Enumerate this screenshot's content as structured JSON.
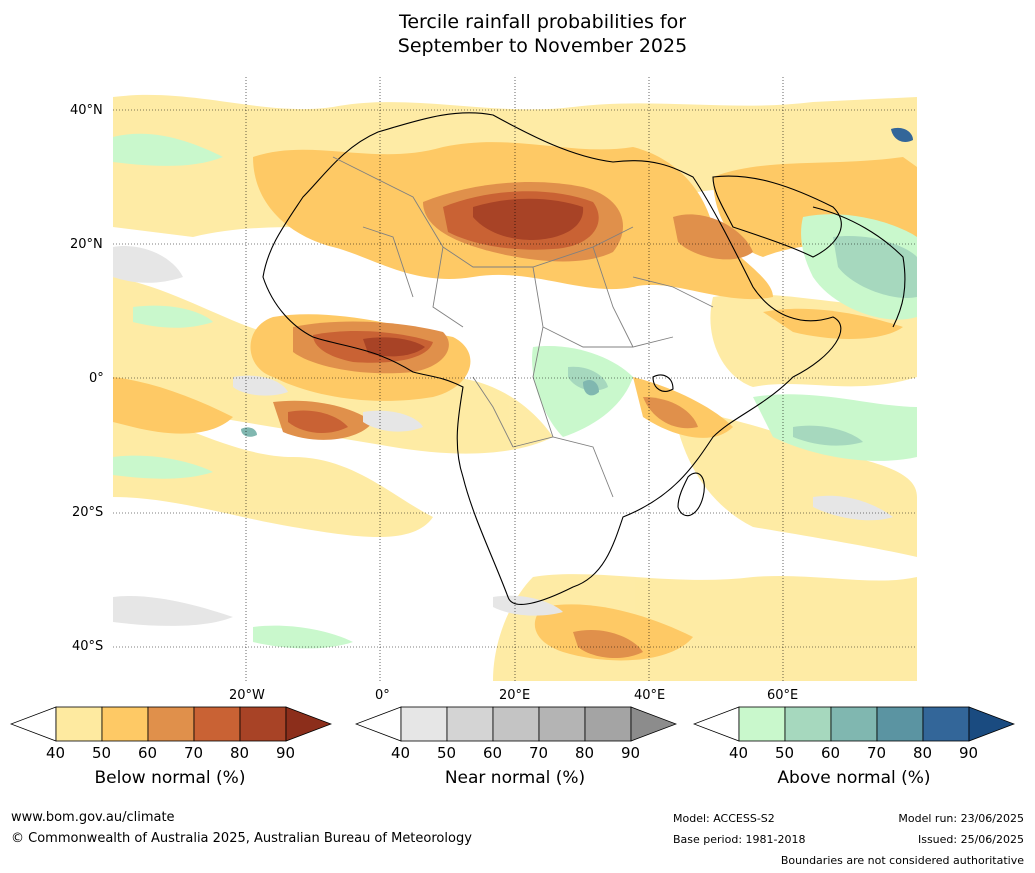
{
  "title": {
    "line1": "Tercile rainfall probabilities for",
    "line2": "September to November 2025"
  },
  "map": {
    "lat_labels": [
      "40°N",
      "20°N",
      "0°",
      "20°S",
      "40°S"
    ],
    "lon_labels": [
      "20°W",
      "0°",
      "20°E",
      "40°E",
      "60°E"
    ]
  },
  "colorbars": [
    {
      "label": "Below normal (%)",
      "ticks": [
        "40",
        "50",
        "60",
        "70",
        "80",
        "90"
      ],
      "colors": [
        "#ffffff",
        "#feeaa0",
        "#fec965",
        "#e0904b",
        "#c96234",
        "#a84326",
        "#8c2e1b"
      ]
    },
    {
      "label": "Near normal (%)",
      "ticks": [
        "40",
        "50",
        "60",
        "70",
        "80",
        "90"
      ],
      "colors": [
        "#ffffff",
        "#e6e6e6",
        "#d4d4d4",
        "#c4c4c4",
        "#b4b4b4",
        "#a4a4a4",
        "#8c8c8c"
      ]
    },
    {
      "label": "Above normal (%)",
      "ticks": [
        "40",
        "50",
        "60",
        "70",
        "80",
        "90"
      ],
      "colors": [
        "#ffffff",
        "#c9f8cc",
        "#a6d8be",
        "#80b7b0",
        "#5b94a2",
        "#336699",
        "#1a4b80"
      ]
    }
  ],
  "footer": {
    "website": "www.bom.gov.au/climate",
    "copyright": "© Commonwealth of Australia 2025, Australian Bureau of Meteorology",
    "model": "Model: ACCESS-S2",
    "base_period": "Base period: 1981-2018",
    "model_run": "Model run: 23/06/2025",
    "issued": "Issued: 25/06/2025",
    "disclaimer": "Boundaries are not considered authoritative"
  }
}
